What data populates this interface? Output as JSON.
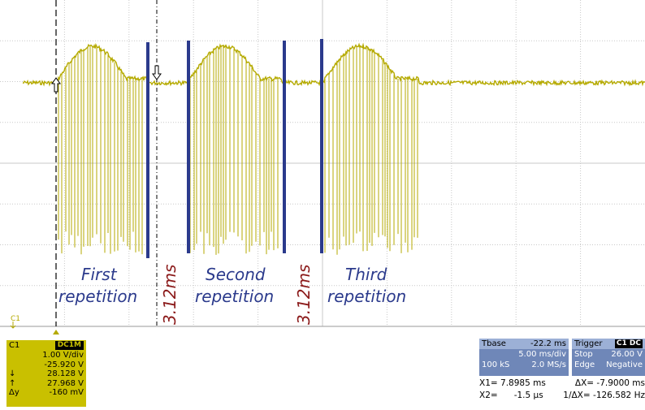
{
  "annotations": {
    "first_line1": "First",
    "first_line2": "repetition",
    "second_line1": "Second",
    "second_line2": "repetition",
    "third_line1": "Third",
    "third_line2": "repetition",
    "gap1": "3.12ms",
    "gap2": "3.12ms"
  },
  "channel_marker": {
    "label": "C1"
  },
  "ch1_panel": {
    "name": "C1",
    "coupling": "DC1M",
    "volts_div": "1.00 V/div",
    "offset": "-25.920 V",
    "cursor_down_symbol": "↓",
    "cursor_down_value": "28.128 V",
    "cursor_up_symbol": "↑",
    "cursor_up_value": "27.968 V",
    "delta_y_symbol": "Δy",
    "delta_y_value": "-160 mV"
  },
  "tbase_panel": {
    "title": "Tbase",
    "delay": "-22.2 ms",
    "time_div": "5.00 ms/div",
    "samples": "100 kS",
    "sample_rate": "2.0 MS/s"
  },
  "trigger_panel": {
    "title": "Trigger",
    "source": "C1 DC",
    "mode": "Stop",
    "level": "26.00 V",
    "type": "Edge",
    "slope": "Negative"
  },
  "cursor_readout": {
    "x1_label": "X1=",
    "x1_value": "7.8985 ms",
    "dx_label": "ΔX=",
    "dx_value": "-7.9000 ms",
    "x2_label": "X2=",
    "x2_value": "-1.5 µs",
    "inv_dx_label": "1/ΔX=",
    "inv_dx_value": "-126.582 Hz"
  },
  "colors": {
    "trace": "#b5aa00",
    "marker_bar": "#2b3a8c",
    "gap_text": "#8b1a1a",
    "grid": "#c8c8c8"
  }
}
